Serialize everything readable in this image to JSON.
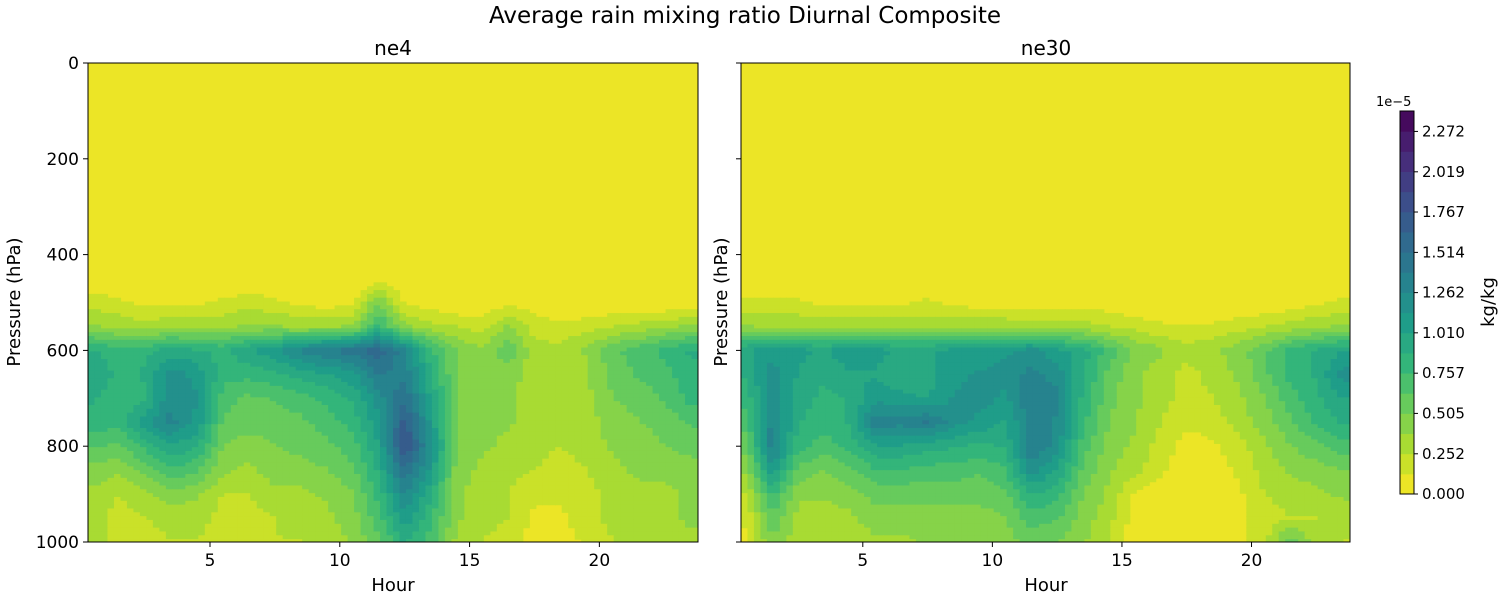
{
  "figure": {
    "title": "Average rain mixing ratio Diurnal Composite"
  },
  "chart_data": [
    {
      "type": "heatmap",
      "style": "filled-contour",
      "title": "ne4",
      "xlabel": "Hour",
      "ylabel": "Pressure (hPa)",
      "xlim": [
        0.3,
        23.8
      ],
      "ylim": [
        1000,
        0
      ],
      "xticks": [
        5,
        10,
        15,
        20
      ],
      "yticks": [
        0,
        200,
        400,
        600,
        800,
        1000
      ],
      "x": [
        0.5,
        1.5,
        2.5,
        3.5,
        4.5,
        5.5,
        6.5,
        7.5,
        8.5,
        9.5,
        10.5,
        11.5,
        12.5,
        13.5,
        14.5,
        15.5,
        16.5,
        17.5,
        18.5,
        19.5,
        20.5,
        21.5,
        22.5,
        23.5
      ],
      "y": [
        450,
        500,
        550,
        600,
        650,
        700,
        750,
        800,
        850,
        900,
        950,
        1000
      ],
      "values_units": "1e-5 kg/kg",
      "values": [
        [
          0.0,
          0.0,
          0.0,
          0.0,
          0.0,
          0.0,
          0.0,
          0.0,
          0.0,
          0.0,
          0.0,
          0.05,
          0.0,
          0.0,
          0.0,
          0.0,
          0.0,
          0.0,
          0.0,
          0.0,
          0.0,
          0.0,
          0.0,
          0.0
        ],
        [
          0.2,
          0.15,
          0.1,
          0.1,
          0.1,
          0.15,
          0.2,
          0.15,
          0.1,
          0.05,
          0.1,
          0.5,
          0.1,
          0.05,
          0.0,
          0.0,
          0.1,
          0.05,
          0.0,
          0.0,
          0.0,
          0.0,
          0.0,
          0.0
        ],
        [
          0.4,
          0.35,
          0.3,
          0.35,
          0.35,
          0.35,
          0.4,
          0.4,
          0.35,
          0.35,
          0.4,
          0.8,
          0.4,
          0.3,
          0.25,
          0.2,
          0.4,
          0.2,
          0.15,
          0.2,
          0.25,
          0.3,
          0.35,
          0.4
        ],
        [
          0.9,
          0.8,
          0.85,
          0.95,
          0.9,
          0.85,
          1.0,
          1.1,
          1.3,
          1.4,
          1.45,
          1.6,
          1.3,
          0.8,
          0.5,
          0.4,
          0.6,
          0.3,
          0.3,
          0.4,
          0.6,
          0.7,
          0.8,
          0.9
        ],
        [
          1.0,
          0.85,
          0.9,
          1.2,
          1.1,
          0.8,
          0.8,
          0.85,
          0.95,
          1.0,
          1.1,
          1.4,
          1.35,
          0.9,
          0.5,
          0.4,
          0.45,
          0.3,
          0.25,
          0.35,
          0.55,
          0.65,
          0.7,
          0.85
        ],
        [
          0.9,
          0.8,
          0.85,
          1.25,
          1.15,
          0.7,
          0.6,
          0.65,
          0.7,
          0.8,
          0.9,
          1.2,
          1.5,
          1.0,
          0.5,
          0.4,
          0.4,
          0.3,
          0.25,
          0.35,
          0.5,
          0.55,
          0.65,
          0.8
        ],
        [
          0.85,
          0.8,
          1.1,
          1.3,
          1.1,
          0.6,
          0.55,
          0.55,
          0.6,
          0.7,
          0.8,
          1.1,
          1.7,
          1.1,
          0.5,
          0.4,
          0.4,
          0.3,
          0.25,
          0.3,
          0.45,
          0.5,
          0.55,
          0.65
        ],
        [
          0.65,
          0.6,
          0.8,
          1.0,
          0.9,
          0.5,
          0.45,
          0.5,
          0.55,
          0.6,
          0.7,
          1.0,
          1.8,
          1.2,
          0.5,
          0.4,
          0.35,
          0.3,
          0.25,
          0.3,
          0.4,
          0.45,
          0.5,
          0.55
        ],
        [
          0.45,
          0.4,
          0.55,
          0.75,
          0.65,
          0.4,
          0.35,
          0.45,
          0.45,
          0.5,
          0.6,
          0.9,
          1.5,
          1.1,
          0.45,
          0.35,
          0.3,
          0.25,
          0.2,
          0.25,
          0.35,
          0.4,
          0.4,
          0.45
        ],
        [
          0.35,
          0.25,
          0.35,
          0.45,
          0.4,
          0.25,
          0.25,
          0.35,
          0.35,
          0.4,
          0.5,
          0.8,
          1.3,
          0.9,
          0.4,
          0.3,
          0.25,
          0.15,
          0.15,
          0.2,
          0.3,
          0.35,
          0.35,
          0.4
        ],
        [
          0.3,
          0.2,
          0.25,
          0.3,
          0.3,
          0.2,
          0.2,
          0.25,
          0.3,
          0.35,
          0.45,
          0.7,
          1.1,
          0.8,
          0.4,
          0.3,
          0.25,
          0.1,
          0.1,
          0.2,
          0.3,
          0.35,
          0.35,
          0.4
        ],
        [
          0.3,
          0.2,
          0.2,
          0.25,
          0.25,
          0.2,
          0.2,
          0.25,
          0.25,
          0.3,
          0.4,
          0.6,
          0.9,
          0.7,
          0.35,
          0.25,
          0.2,
          0.05,
          0.05,
          0.15,
          0.25,
          0.35,
          0.3,
          0.35
        ]
      ]
    },
    {
      "type": "heatmap",
      "style": "filled-contour",
      "title": "ne30",
      "xlabel": "Hour",
      "ylabel": "Pressure (hPa)",
      "xlim": [
        0.3,
        23.8
      ],
      "ylim": [
        1000,
        0
      ],
      "xticks": [
        5,
        10,
        15,
        20
      ],
      "yticks": [
        0,
        200,
        400,
        600,
        800,
        1000
      ],
      "x": [
        0.5,
        1.5,
        2.5,
        3.5,
        4.5,
        5.5,
        6.5,
        7.5,
        8.5,
        9.5,
        10.5,
        11.5,
        12.5,
        13.5,
        14.5,
        15.5,
        16.5,
        17.5,
        18.5,
        19.5,
        20.5,
        21.5,
        22.5,
        23.5
      ],
      "y": [
        450,
        500,
        550,
        600,
        650,
        700,
        750,
        800,
        850,
        900,
        950,
        1000
      ],
      "values_units": "1e-5 kg/kg",
      "values": [
        [
          0.0,
          0.0,
          0.0,
          0.0,
          0.0,
          0.0,
          0.0,
          0.0,
          0.0,
          0.0,
          0.0,
          0.0,
          0.0,
          0.0,
          0.0,
          0.0,
          0.0,
          0.0,
          0.0,
          0.0,
          0.0,
          0.0,
          0.0,
          0.0
        ],
        [
          0.15,
          0.15,
          0.15,
          0.1,
          0.1,
          0.1,
          0.1,
          0.15,
          0.1,
          0.05,
          0.05,
          0.05,
          0.05,
          0.05,
          0.05,
          0.0,
          0.0,
          0.0,
          0.0,
          0.0,
          0.0,
          0.05,
          0.1,
          0.15
        ],
        [
          0.4,
          0.35,
          0.35,
          0.35,
          0.35,
          0.35,
          0.35,
          0.35,
          0.35,
          0.35,
          0.35,
          0.3,
          0.3,
          0.3,
          0.25,
          0.2,
          0.15,
          0.15,
          0.15,
          0.2,
          0.25,
          0.3,
          0.35,
          0.4
        ],
        [
          1.0,
          1.1,
          1.05,
          1.0,
          1.1,
          1.05,
          1.0,
          1.0,
          1.05,
          1.05,
          1.1,
          1.2,
          1.05,
          0.95,
          0.7,
          0.5,
          0.4,
          0.3,
          0.35,
          0.45,
          0.6,
          0.8,
          0.9,
          1.0
        ],
        [
          0.9,
          1.2,
          1.0,
          0.9,
          1.0,
          1.0,
          0.9,
          0.95,
          1.1,
          1.15,
          1.2,
          1.3,
          1.2,
          0.9,
          0.6,
          0.4,
          0.3,
          0.2,
          0.3,
          0.4,
          0.6,
          0.8,
          0.9,
          1.2
        ],
        [
          0.8,
          1.25,
          0.95,
          0.85,
          0.9,
          1.1,
          1.05,
          1.0,
          1.15,
          1.2,
          1.1,
          1.4,
          1.3,
          0.85,
          0.55,
          0.4,
          0.3,
          0.2,
          0.25,
          0.35,
          0.5,
          0.7,
          0.85,
          1.0
        ],
        [
          0.7,
          1.3,
          0.9,
          0.8,
          0.9,
          1.35,
          1.3,
          1.4,
          1.2,
          1.1,
          1.0,
          1.3,
          1.25,
          0.8,
          0.5,
          0.4,
          0.25,
          0.15,
          0.2,
          0.3,
          0.45,
          0.6,
          0.8,
          0.9
        ],
        [
          0.55,
          1.35,
          0.8,
          0.7,
          0.8,
          1.0,
          1.0,
          0.95,
          0.9,
          0.85,
          0.9,
          1.4,
          1.2,
          0.7,
          0.45,
          0.35,
          0.2,
          0.05,
          0.1,
          0.2,
          0.35,
          0.5,
          0.6,
          0.7
        ],
        [
          0.4,
          1.1,
          0.6,
          0.5,
          0.6,
          0.75,
          0.75,
          0.7,
          0.7,
          0.65,
          0.75,
          1.2,
          1.0,
          0.6,
          0.4,
          0.3,
          0.15,
          0.05,
          0.05,
          0.15,
          0.3,
          0.4,
          0.45,
          0.5
        ],
        [
          0.25,
          0.8,
          0.4,
          0.4,
          0.45,
          0.55,
          0.55,
          0.55,
          0.55,
          0.55,
          0.6,
          0.9,
          0.8,
          0.5,
          0.35,
          0.1,
          0.05,
          0.05,
          0.05,
          0.1,
          0.25,
          0.3,
          0.35,
          0.4
        ],
        [
          0.15,
          0.6,
          0.35,
          0.3,
          0.35,
          0.45,
          0.45,
          0.45,
          0.45,
          0.45,
          0.5,
          0.7,
          0.65,
          0.45,
          0.3,
          0.05,
          0.05,
          0.05,
          0.05,
          0.1,
          0.2,
          0.25,
          0.25,
          0.3
        ],
        [
          0.1,
          0.5,
          0.3,
          0.25,
          0.3,
          0.35,
          0.35,
          0.4,
          0.4,
          0.4,
          0.45,
          0.55,
          0.5,
          0.4,
          0.25,
          0.05,
          0.05,
          0.05,
          0.05,
          0.1,
          0.2,
          0.6,
          0.3,
          0.25
        ]
      ]
    }
  ],
  "colorbar": {
    "label": "kg/kg",
    "exponent": "1e−5",
    "colormap": "viridis-reversed",
    "vmin": 0.0,
    "vmax": 2.4,
    "levels": 19,
    "ticks": [
      0.0,
      0.252,
      0.505,
      0.757,
      1.01,
      1.262,
      1.514,
      1.767,
      2.019,
      2.272
    ],
    "tick_labels": [
      "0.000",
      "0.252",
      "0.505",
      "0.757",
      "1.010",
      "1.262",
      "1.514",
      "1.767",
      "2.019",
      "2.272"
    ]
  }
}
